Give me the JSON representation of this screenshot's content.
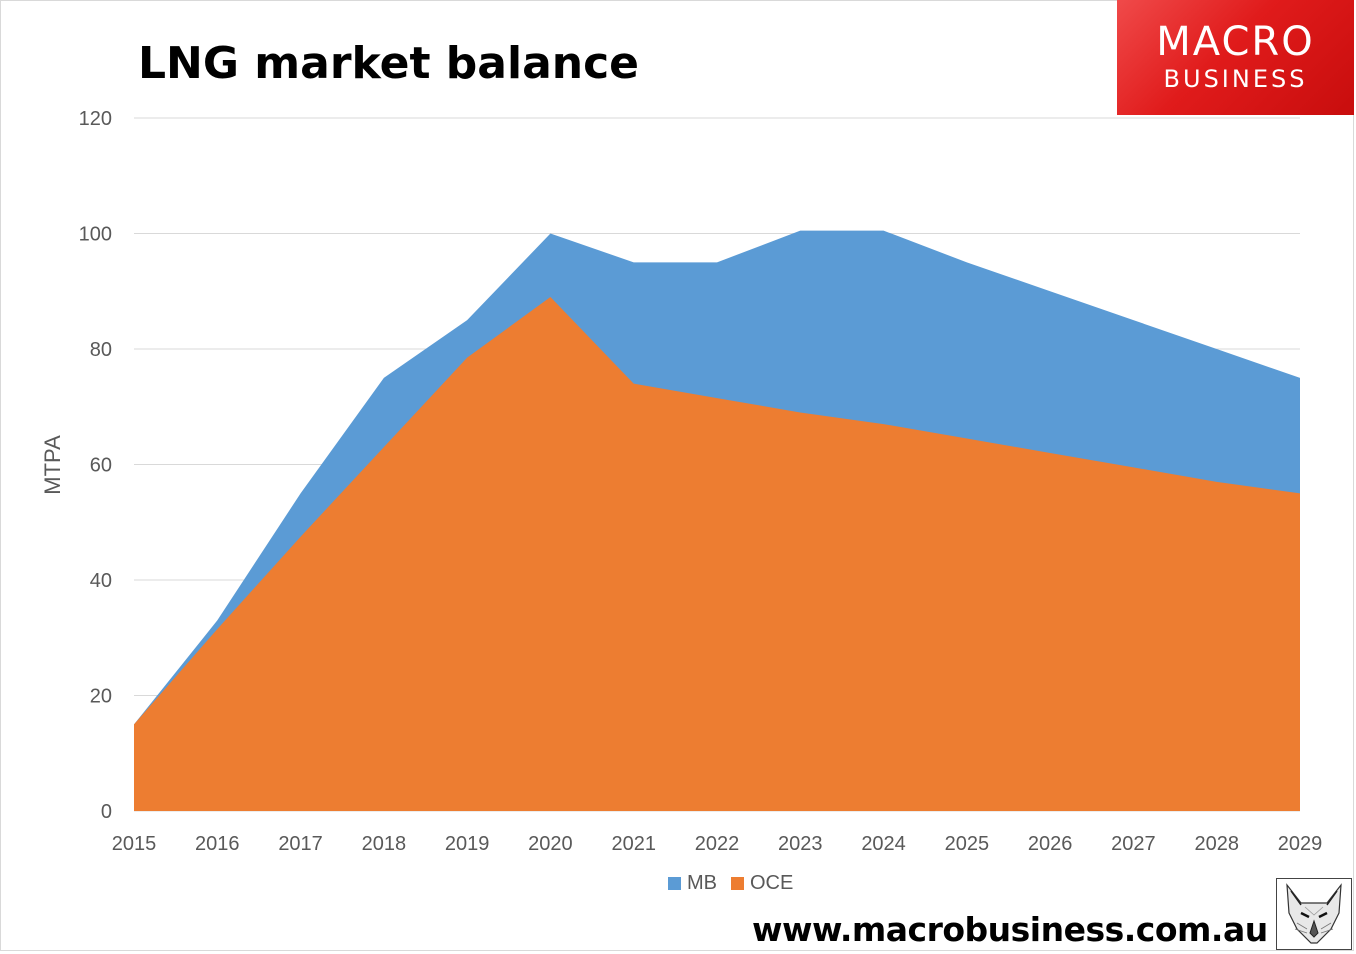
{
  "title": "LNG market balance",
  "logo": {
    "line1": "MACRO",
    "line2": "BUSINESS"
  },
  "website": "www.macrobusiness.com.au",
  "colors": {
    "mb": "#5b9bd5",
    "oce": "#ed7d31",
    "logo_red": "#e31d1d"
  },
  "chart_data": {
    "type": "area",
    "stacked": false,
    "categories": [
      "2015",
      "2016",
      "2017",
      "2018",
      "2019",
      "2020",
      "2021",
      "2022",
      "2023",
      "2024",
      "2025",
      "2026",
      "2027",
      "2028",
      "2029"
    ],
    "series": [
      {
        "name": "MB",
        "color": "#5b9bd5",
        "values": [
          15,
          33,
          55,
          75,
          85,
          100,
          95,
          95,
          100.5,
          100.5,
          95,
          90,
          85,
          80,
          75
        ]
      },
      {
        "name": "OCE",
        "color": "#ed7d31",
        "values": [
          15,
          31.5,
          47.5,
          63,
          78.5,
          89,
          74,
          71.5,
          69,
          67,
          64.5,
          62,
          59.5,
          57,
          55
        ]
      }
    ],
    "ylabel": "MTPA",
    "ylim": [
      0,
      120
    ],
    "yticks": [
      "0",
      "20",
      "40",
      "60",
      "80",
      "100",
      "120"
    ],
    "grid": true,
    "legend": "bottom"
  }
}
